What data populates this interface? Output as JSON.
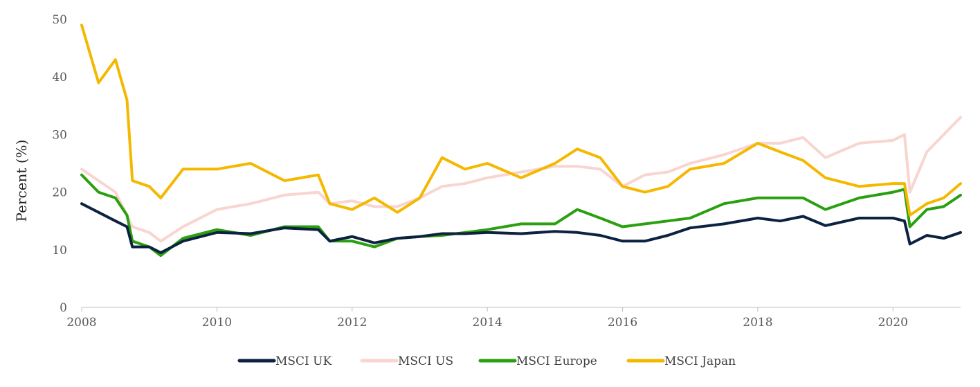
{
  "chart_data": {
    "type": "line",
    "title": "",
    "xlabel": "",
    "ylabel": "Percent (%)",
    "xlim": [
      2008,
      2021
    ],
    "ylim": [
      0,
      50
    ],
    "x_ticks": [
      "2008",
      "2010",
      "2012",
      "2014",
      "2016",
      "2018",
      "2020"
    ],
    "y_ticks": [
      "0",
      "10",
      "20",
      "30",
      "40",
      "50"
    ],
    "grid": false,
    "legend_position": "bottom",
    "x": [
      2008.0,
      2008.25,
      2008.5,
      2008.67,
      2008.75,
      2009.0,
      2009.17,
      2009.5,
      2010.0,
      2010.5,
      2011.0,
      2011.5,
      2011.67,
      2012.0,
      2012.33,
      2012.67,
      2013.0,
      2013.33,
      2013.67,
      2014.0,
      2014.5,
      2015.0,
      2015.33,
      2015.67,
      2016.0,
      2016.33,
      2016.67,
      2017.0,
      2017.5,
      2018.0,
      2018.33,
      2018.67,
      2019.0,
      2019.5,
      2020.0,
      2020.17,
      2020.25,
      2020.5,
      2020.75,
      2021.0
    ],
    "series": [
      {
        "name": "MSCI UK",
        "color": "#0d2240",
        "values": [
          18,
          16.5,
          15,
          14,
          10.5,
          10.5,
          9.5,
          11.5,
          13,
          12.8,
          13.8,
          13.5,
          11.5,
          12.3,
          11.2,
          12,
          12.3,
          12.8,
          12.8,
          13,
          12.8,
          13.2,
          13,
          12.5,
          11.5,
          11.5,
          12.5,
          13.8,
          14.5,
          15.5,
          15,
          15.8,
          14.2,
          15.5,
          15.5,
          15,
          11,
          12.5,
          12,
          13
        ]
      },
      {
        "name": "MSCI US",
        "color": "#f8d5d0",
        "values": [
          24,
          22,
          20,
          16,
          14,
          13,
          11.5,
          14,
          17,
          18,
          19.5,
          20,
          18,
          18.5,
          17.5,
          17.5,
          19,
          21,
          21.5,
          22.5,
          23.5,
          24.5,
          24.5,
          24,
          21,
          23,
          23.5,
          25,
          26.5,
          28.5,
          28.5,
          29.5,
          26,
          28.5,
          29,
          30,
          20,
          27,
          30,
          33
        ]
      },
      {
        "name": "MSCI Europe",
        "color": "#2aa010",
        "values": [
          23,
          20,
          19,
          16,
          11.5,
          10.5,
          9,
          12,
          13.5,
          12.5,
          14,
          14,
          11.5,
          11.5,
          10.5,
          12,
          12.3,
          12.5,
          13,
          13.5,
          14.5,
          14.5,
          17,
          15.5,
          14,
          14.5,
          15,
          15.5,
          18,
          19,
          19,
          19,
          17,
          19,
          20,
          20.5,
          14,
          17,
          17.5,
          19.5
        ]
      },
      {
        "name": "MSCI Japan",
        "color": "#f5b800",
        "values": [
          49,
          39,
          43,
          36,
          22,
          21,
          19,
          24,
          24,
          25,
          22,
          23,
          18,
          17,
          19,
          16.5,
          19,
          26,
          24,
          25,
          22.5,
          25,
          27.5,
          26,
          21,
          20,
          21,
          24,
          25,
          28.5,
          27,
          25.5,
          22.5,
          21,
          21.5,
          21.5,
          16,
          18,
          19,
          21.5
        ]
      }
    ]
  }
}
